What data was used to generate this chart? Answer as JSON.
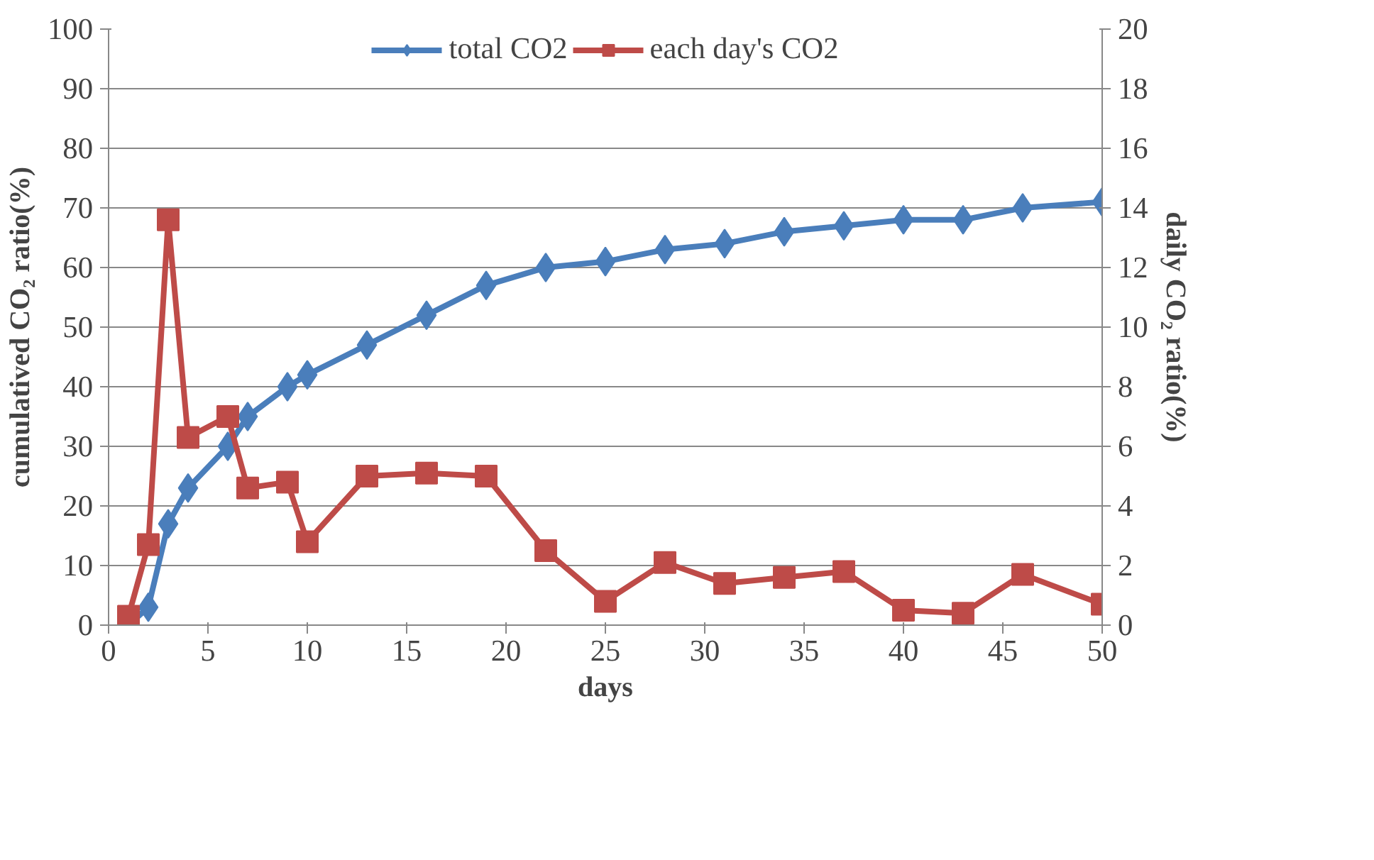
{
  "chart_data": {
    "type": "line",
    "xlabel": "days",
    "ylabel": "cumulatived CO₂ ratio(%)",
    "y2label": "daily CO₂ ratio(%)",
    "x": [
      1,
      2,
      3,
      4,
      6,
      7,
      9,
      10,
      13,
      16,
      19,
      22,
      25,
      28,
      31,
      34,
      37,
      40,
      43,
      46,
      50
    ],
    "series": [
      {
        "name": "total CO2",
        "color": "#4a7ebb",
        "marker": "diamond",
        "values": [
          0,
          3,
          17,
          23,
          30,
          35,
          40,
          42,
          47,
          52,
          57,
          60,
          61,
          63,
          64,
          66,
          67,
          68,
          68,
          70,
          71
        ]
      },
      {
        "name": "each day's CO2",
        "color": "#be4b48",
        "marker": "square",
        "axis": "y2",
        "values": [
          0.3,
          2.7,
          13.6,
          6.3,
          7.0,
          4.6,
          4.8,
          2.8,
          5.0,
          5.1,
          5.0,
          2.5,
          0.8,
          2.1,
          1.4,
          1.6,
          1.8,
          0.5,
          0.4,
          1.7,
          0.7
        ]
      }
    ],
    "xlim": [
      0,
      50
    ],
    "xticks": [
      0,
      5,
      10,
      15,
      20,
      25,
      30,
      35,
      40,
      45,
      50
    ],
    "ylim": [
      0,
      100
    ],
    "yticks": [
      0,
      10,
      20,
      30,
      40,
      50,
      60,
      70,
      80,
      90,
      100
    ],
    "y2lim": [
      0,
      20
    ],
    "y2ticks": [
      0,
      2,
      4,
      6,
      8,
      10,
      12,
      14,
      16,
      18,
      20
    ],
    "grid": "y",
    "legend": "top",
    "line_style": "solid"
  }
}
